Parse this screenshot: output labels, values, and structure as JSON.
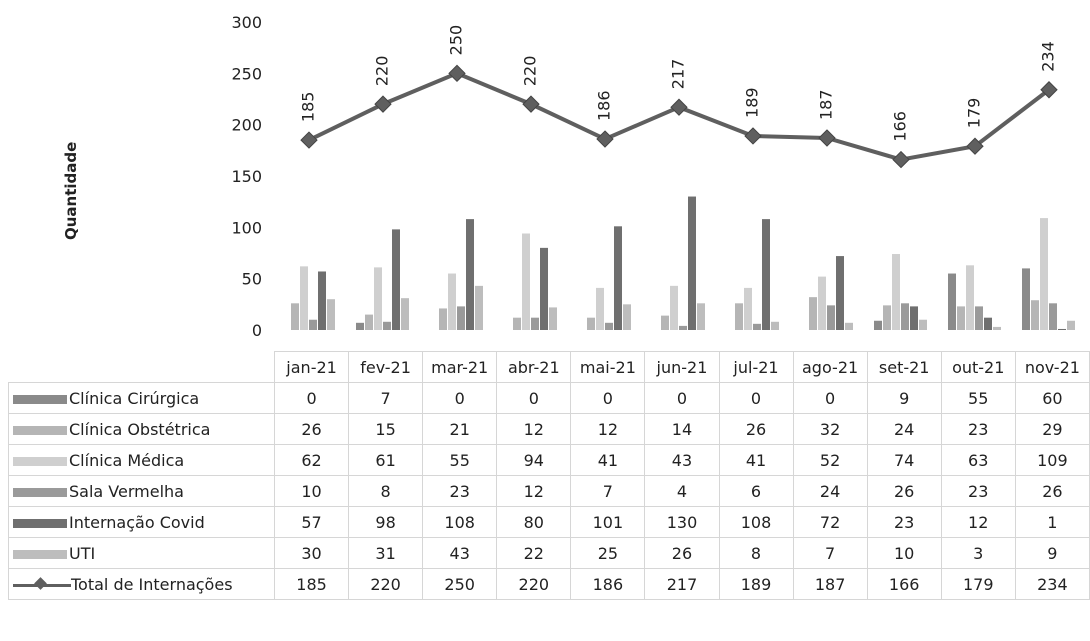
{
  "chart_data": {
    "type": "bar",
    "ylabel": "Quantidade",
    "ylim": [
      0,
      300
    ],
    "yticks": [
      0,
      50,
      100,
      150,
      200,
      250,
      300
    ],
    "categories": [
      "jan-21",
      "fev-21",
      "mar-21",
      "abr-21",
      "mai-21",
      "jun-21",
      "jul-21",
      "ago-21",
      "set-21",
      "out-21",
      "nov-21"
    ],
    "series": [
      {
        "name": "Clínica Cirúrgica",
        "kind": "bar",
        "color": "#8a8a8a",
        "values": [
          0,
          7,
          0,
          0,
          0,
          0,
          0,
          0,
          9,
          55,
          60
        ]
      },
      {
        "name": "Clínica Obstétrica",
        "kind": "bar",
        "color": "#b5b5b5",
        "values": [
          26,
          15,
          21,
          12,
          12,
          14,
          26,
          32,
          24,
          23,
          29
        ]
      },
      {
        "name": "Clínica Médica",
        "kind": "bar",
        "color": "#cfcfcf",
        "values": [
          62,
          61,
          55,
          94,
          41,
          43,
          41,
          52,
          74,
          63,
          109
        ]
      },
      {
        "name": "Sala Vermelha",
        "kind": "bar",
        "color": "#9a9a9a",
        "values": [
          10,
          8,
          23,
          12,
          7,
          4,
          6,
          24,
          26,
          23,
          26
        ]
      },
      {
        "name": "Internação Covid",
        "kind": "bar",
        "color": "#6f6f6f",
        "values": [
          57,
          98,
          108,
          80,
          101,
          130,
          108,
          72,
          23,
          12,
          1
        ]
      },
      {
        "name": "UTI",
        "kind": "bar",
        "color": "#bdbdbd",
        "values": [
          30,
          31,
          43,
          22,
          25,
          26,
          8,
          7,
          10,
          3,
          9
        ]
      },
      {
        "name": "Total de Internações",
        "kind": "line",
        "color": "#5f5f5f",
        "values": [
          185,
          220,
          250,
          220,
          186,
          217,
          189,
          187,
          166,
          179,
          234
        ]
      }
    ],
    "data_labels": "Total de Internações",
    "grid": false,
    "legend": "data-table below chart"
  }
}
